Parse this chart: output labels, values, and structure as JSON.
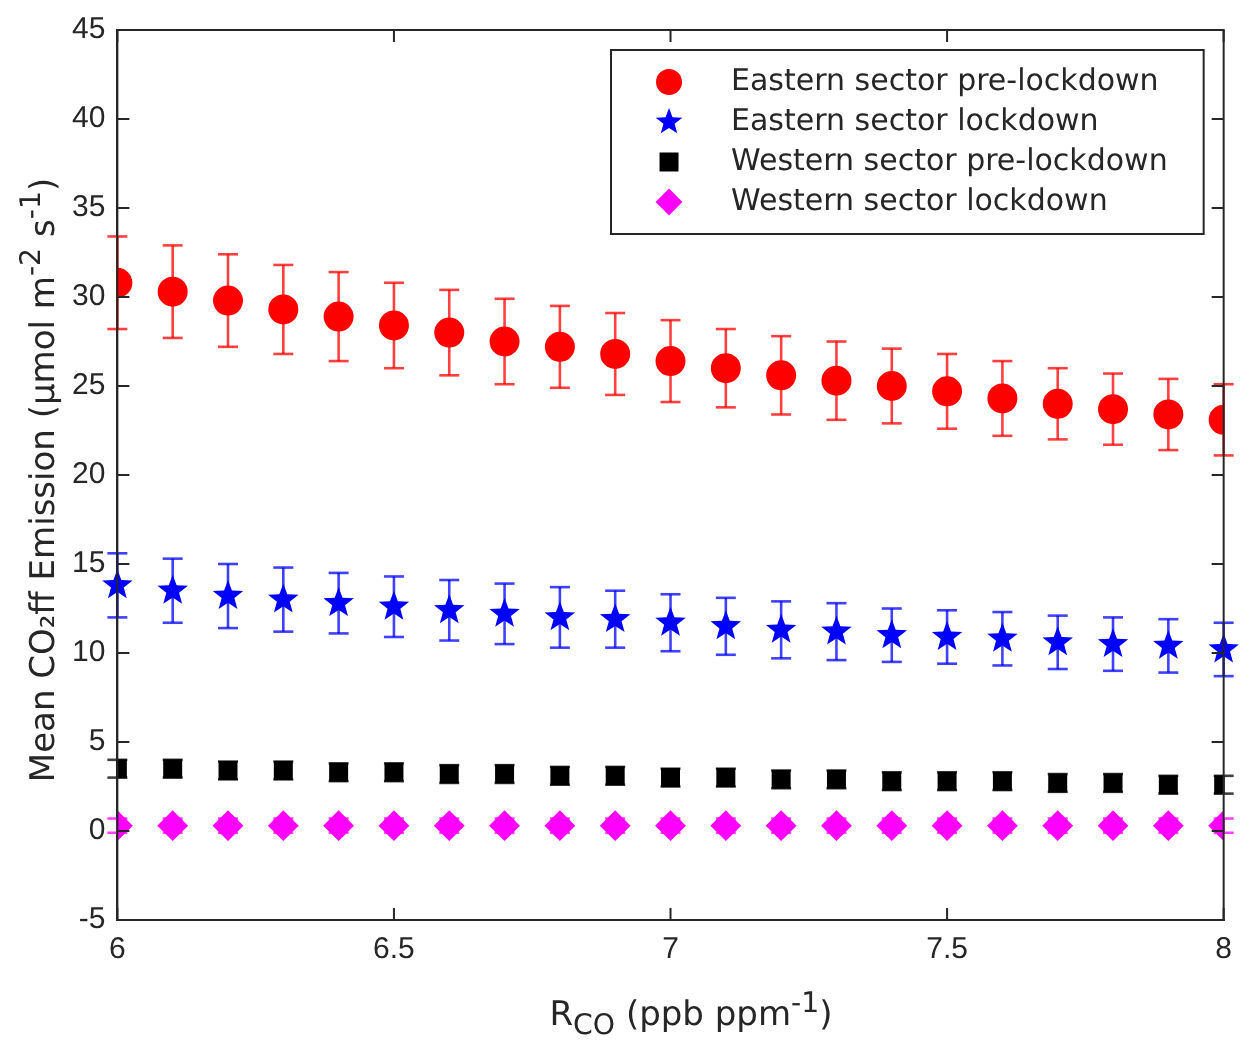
{
  "chart_data": {
    "type": "scatter",
    "xlabel": "R$_{CO}$ (ppb ppm$^{-1}$)",
    "ylabel": "Mean CO₂ff Emission (μmol m$^{-2}$ s$^{-1}$)",
    "x": [
      6,
      6.1,
      6.2,
      6.3,
      6.4,
      6.5,
      6.6,
      6.7,
      6.8,
      6.9,
      7,
      7.1,
      7.2,
      7.3,
      7.4,
      7.5,
      7.6,
      7.7,
      7.8,
      7.9,
      8
    ],
    "xlim": [
      6,
      8
    ],
    "xticks": [
      6,
      6.5,
      7,
      7.5,
      8
    ],
    "ylim": [
      -5,
      45
    ],
    "yticks": [
      -5,
      0,
      5,
      10,
      15,
      20,
      25,
      30,
      35,
      40,
      45
    ],
    "grid": false,
    "legend": "top right",
    "series": [
      {
        "name": "Eastern sector pre-lockdown",
        "color": "#ff0000",
        "marker": "circle",
        "values": [
          30.8,
          30.3,
          29.8,
          29.3,
          28.9,
          28.4,
          28.0,
          27.5,
          27.2,
          26.8,
          26.4,
          26.0,
          25.6,
          25.3,
          25.0,
          24.7,
          24.3,
          24.0,
          23.7,
          23.4,
          23.1
        ],
        "errors": [
          2.6,
          2.6,
          2.6,
          2.5,
          2.5,
          2.4,
          2.4,
          2.4,
          2.3,
          2.3,
          2.3,
          2.2,
          2.2,
          2.2,
          2.1,
          2.1,
          2.1,
          2.0,
          2.0,
          2.0,
          2.0
        ]
      },
      {
        "name": "Eastern sector lockdown",
        "color": "#0000ff",
        "marker": "star",
        "values": [
          13.8,
          13.5,
          13.2,
          13.0,
          12.8,
          12.6,
          12.4,
          12.2,
          12.0,
          11.9,
          11.7,
          11.5,
          11.3,
          11.2,
          11.0,
          10.9,
          10.8,
          10.6,
          10.5,
          10.4,
          10.2
        ],
        "errors": [
          1.8,
          1.8,
          1.8,
          1.8,
          1.7,
          1.7,
          1.7,
          1.7,
          1.7,
          1.6,
          1.6,
          1.6,
          1.6,
          1.6,
          1.5,
          1.5,
          1.5,
          1.5,
          1.5,
          1.5,
          1.5
        ]
      },
      {
        "name": "Western sector pre-lockdown",
        "color": "#000000",
        "marker": "square",
        "values": [
          3.5,
          3.5,
          3.4,
          3.4,
          3.3,
          3.3,
          3.2,
          3.2,
          3.1,
          3.1,
          3.0,
          3.0,
          2.9,
          2.9,
          2.8,
          2.8,
          2.8,
          2.7,
          2.7,
          2.6,
          2.6
        ],
        "errors": [
          0.5,
          0.5,
          0.5,
          0.5,
          0.5,
          0.5,
          0.5,
          0.5,
          0.5,
          0.5,
          0.5,
          0.5,
          0.5,
          0.5,
          0.5,
          0.5,
          0.5,
          0.5,
          0.5,
          0.5,
          0.5
        ]
      },
      {
        "name": "Western sector lockdown",
        "color": "#ff00ff",
        "marker": "diamond",
        "values": [
          0.3,
          0.3,
          0.3,
          0.3,
          0.3,
          0.3,
          0.3,
          0.3,
          0.3,
          0.3,
          0.3,
          0.3,
          0.3,
          0.3,
          0.3,
          0.3,
          0.3,
          0.3,
          0.3,
          0.3,
          0.3
        ],
        "errors": [
          0.4,
          0.4,
          0.4,
          0.4,
          0.4,
          0.4,
          0.4,
          0.4,
          0.4,
          0.4,
          0.4,
          0.4,
          0.4,
          0.4,
          0.4,
          0.4,
          0.4,
          0.4,
          0.4,
          0.4,
          0.4
        ]
      }
    ]
  }
}
